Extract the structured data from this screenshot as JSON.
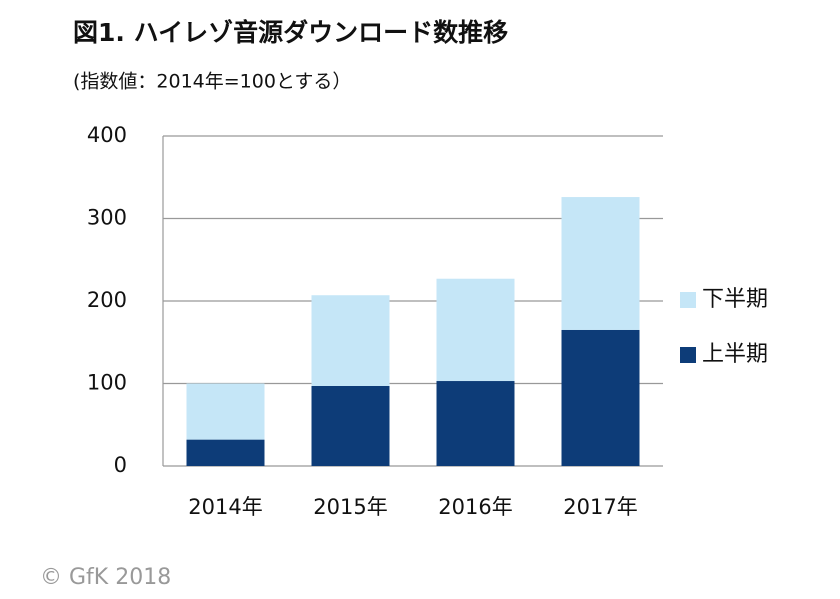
{
  "chart_data": {
    "type": "stacked_bar",
    "title": "図1. ハイレゾ音源ダウンロード数推移",
    "subtitle": "(指数値：2014年=100とする）",
    "categories": [
      "2014年",
      "2015年",
      "2016年",
      "2017年"
    ],
    "series": [
      {
        "name": "上半期",
        "color": "#0d3c78",
        "values": [
          32,
          97,
          103,
          165
        ]
      },
      {
        "name": "下半期",
        "color": "#c5e6f7",
        "values": [
          68,
          110,
          124,
          161
        ]
      }
    ],
    "ylim": [
      0,
      400
    ],
    "yticks": [
      0,
      100,
      200,
      300,
      400
    ],
    "grid": true,
    "legend": "right",
    "footer": "© GfK 2018"
  }
}
